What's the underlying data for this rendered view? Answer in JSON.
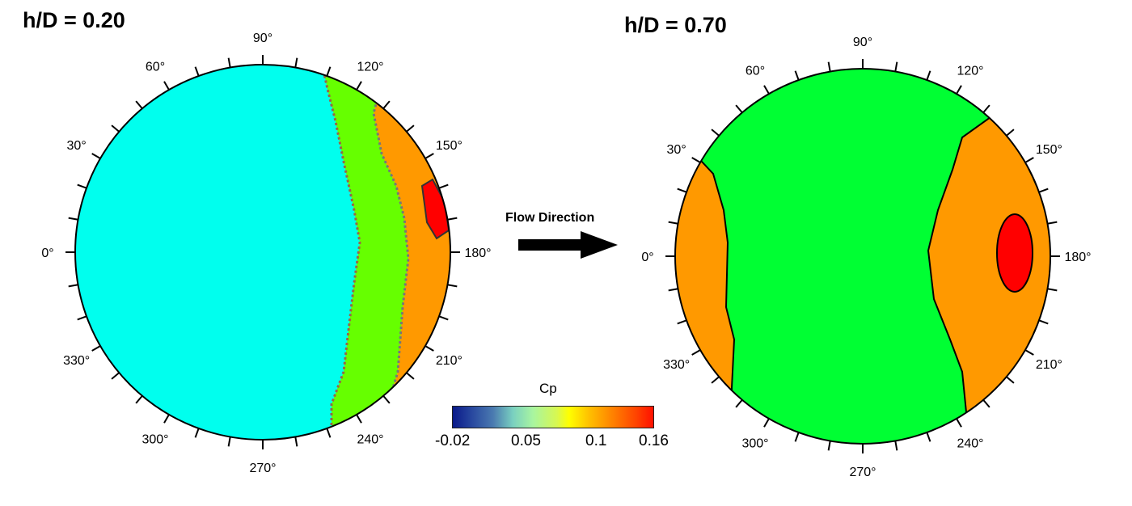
{
  "panels": [
    {
      "title": "h/D = 0.20"
    },
    {
      "title": "h/D = 0.70"
    }
  ],
  "angle_labels": [
    "0°",
    "30°",
    "60°",
    "90°",
    "120°",
    "150°",
    "180°",
    "210°",
    "240°",
    "270°",
    "300°",
    "330°"
  ],
  "flow": {
    "label": "Flow Direction"
  },
  "colorbar": {
    "title": "Cp",
    "ticks": [
      "-0.02",
      "0.05",
      "0.1",
      "0.16"
    ]
  },
  "colors": {
    "cyan": "#00ffee",
    "green_low": "#66ff00",
    "green_high": "#00ff33",
    "orange": "#ff9900",
    "red": "#ff0000"
  },
  "chart_data": {
    "type": "contour",
    "variable": "Cp",
    "range": [
      -0.02,
      0.16
    ],
    "angle_ticks_deg": [
      0,
      30,
      60,
      90,
      120,
      150,
      180,
      210,
      240,
      270,
      300,
      330
    ],
    "panels": [
      {
        "title": "h/D = 0.20",
        "regions": [
          {
            "color": "cyan",
            "angles": "0°–~110° / ~245°–360° side"
          },
          {
            "color": "green",
            "angles": "~115°–140° band"
          },
          {
            "color": "orange",
            "angles": "~140°–215° band"
          },
          {
            "color": "red",
            "angles": "~160°–175° near edge"
          }
        ]
      },
      {
        "title": "h/D = 0.70",
        "regions": [
          {
            "color": "orange",
            "angles": "~330°–30° (upstream)"
          },
          {
            "color": "green",
            "angles": "central"
          },
          {
            "color": "orange",
            "angles": "~135°–235° (downstream)"
          },
          {
            "color": "red",
            "angles": "~175°–185° interior"
          }
        ]
      }
    ]
  }
}
